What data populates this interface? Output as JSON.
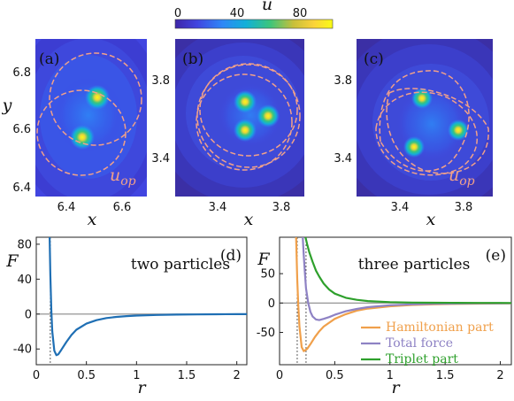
{
  "colorbar": {
    "label": "u",
    "ticks": [
      "0",
      "40",
      "80"
    ],
    "colors": [
      "#3e26a8",
      "#4145e0",
      "#2e87f7",
      "#12b0d8",
      "#3ac57d",
      "#c7bf3a",
      "#fbd23a",
      "#f9fb15"
    ]
  },
  "heatmaps": [
    {
      "label": "(a)",
      "xlabel": "x",
      "ylabel": "y",
      "xticks": [
        "6.4",
        "6.6"
      ],
      "yticks": [
        "6.8",
        "6.6",
        "6.4"
      ],
      "uop": "u",
      "uop_sub": "op",
      "centers": [
        {
          "x": 6.52,
          "y": 6.71
        },
        {
          "x": 6.46,
          "y": 6.58
        }
      ]
    },
    {
      "label": "(b)",
      "xlabel": "x",
      "ylabel": "",
      "xticks": [
        "3.4",
        "3.8"
      ],
      "yticks": [
        "3.8",
        "3.4"
      ],
      "uop": "",
      "uop_sub": "",
      "centers": [
        {
          "x": 3.55,
          "y": 3.7
        },
        {
          "x": 3.65,
          "y": 3.63
        },
        {
          "x": 3.55,
          "y": 3.55
        }
      ]
    },
    {
      "label": "(c)",
      "xlabel": "x",
      "ylabel": "",
      "xticks": [
        "3.4",
        "3.8"
      ],
      "yticks": [
        "3.8",
        "3.4"
      ],
      "uop": "u",
      "uop_sub": "op",
      "centers": [
        {
          "x": 3.49,
          "y": 3.75
        },
        {
          "x": 3.7,
          "y": 3.57
        },
        {
          "x": 3.44,
          "y": 3.48
        }
      ]
    }
  ],
  "chart_data": [
    {
      "type": "line",
      "panel": "(d)",
      "annotation": "two particles",
      "xlabel": "r",
      "ylabel": "F",
      "xlim": [
        0,
        2.1
      ],
      "ylim": [
        -58,
        88
      ],
      "xticks": [
        0,
        0.5,
        1,
        1.5,
        2
      ],
      "xticklabels": [
        "0",
        "0.5",
        "1",
        "1.5",
        "2"
      ],
      "yticks": [
        80,
        40,
        0,
        -40
      ],
      "yticklabels": [
        "80",
        "40",
        "0",
        "-40"
      ],
      "vline_x": 0.14,
      "series": [
        {
          "color": "#1f6fb4",
          "x": [
            0.133,
            0.14,
            0.15,
            0.16,
            0.18,
            0.2,
            0.22,
            0.25,
            0.3,
            0.35,
            0.4,
            0.5,
            0.6,
            0.7,
            0.8,
            0.9,
            1.0,
            1.2,
            1.4,
            1.6,
            1.8,
            2.0,
            2.1
          ],
          "y": [
            88,
            45,
            5,
            -20,
            -42,
            -47,
            -46,
            -41,
            -32,
            -24,
            -18,
            -11,
            -7,
            -4.6,
            -3.2,
            -2.3,
            -1.7,
            -1.0,
            -0.6,
            -0.4,
            -0.25,
            -0.15,
            -0.12
          ]
        }
      ]
    },
    {
      "type": "line",
      "panel": "(e)",
      "annotation": "three particles",
      "xlabel": "r",
      "ylabel": "F",
      "xlim": [
        0,
        2.1
      ],
      "ylim": [
        -105,
        112
      ],
      "xticks": [
        0,
        0.5,
        1,
        1.5,
        2
      ],
      "xticklabels": [
        "0",
        "0.5",
        "1",
        "1.5",
        "2"
      ],
      "yticks": [
        50,
        0,
        -50
      ],
      "yticklabels": [
        "50",
        "0",
        "-50"
      ],
      "vlines_x": [
        0.16,
        0.24
      ],
      "legend_position": "lower-right",
      "series": [
        {
          "name": "Hamiltonian part",
          "color": "#f0a04b",
          "x": [
            0.15,
            0.16,
            0.17,
            0.18,
            0.2,
            0.22,
            0.25,
            0.28,
            0.32,
            0.36,
            0.4,
            0.5,
            0.6,
            0.7,
            0.8,
            1.0,
            1.2,
            1.4,
            1.6,
            1.8,
            2.0,
            2.1
          ],
          "y": [
            112,
            40,
            -5,
            -40,
            -75,
            -82,
            -78,
            -70,
            -58,
            -48,
            -40,
            -27,
            -19,
            -13,
            -9.5,
            -5.5,
            -3.3,
            -2.2,
            -1.5,
            -1.0,
            -0.7,
            -0.6
          ]
        },
        {
          "name": "Total force",
          "color": "#8e82c4",
          "x": [
            0.21,
            0.22,
            0.23,
            0.24,
            0.26,
            0.28,
            0.3,
            0.33,
            0.36,
            0.4,
            0.45,
            0.5,
            0.6,
            0.7,
            0.8,
            1.0,
            1.2,
            1.4,
            1.6,
            1.8,
            2.0,
            2.1
          ],
          "y": [
            112,
            80,
            50,
            25,
            0,
            -15,
            -23,
            -28,
            -29,
            -27,
            -24,
            -20,
            -14,
            -10,
            -7,
            -3.8,
            -2.2,
            -1.3,
            -0.8,
            -0.5,
            -0.35,
            -0.3
          ]
        },
        {
          "name": "Triplet part",
          "color": "#2ea02c",
          "x": [
            0.235,
            0.25,
            0.27,
            0.3,
            0.33,
            0.36,
            0.4,
            0.45,
            0.5,
            0.6,
            0.7,
            0.8,
            1.0,
            1.2,
            1.4,
            1.6,
            1.8,
            2.0,
            2.1
          ],
          "y": [
            112,
            100,
            86,
            70,
            55,
            45,
            33,
            23,
            16,
            9,
            5.5,
            3.4,
            1.6,
            0.8,
            0.45,
            0.3,
            0.2,
            0.12,
            0.1
          ]
        }
      ]
    }
  ]
}
